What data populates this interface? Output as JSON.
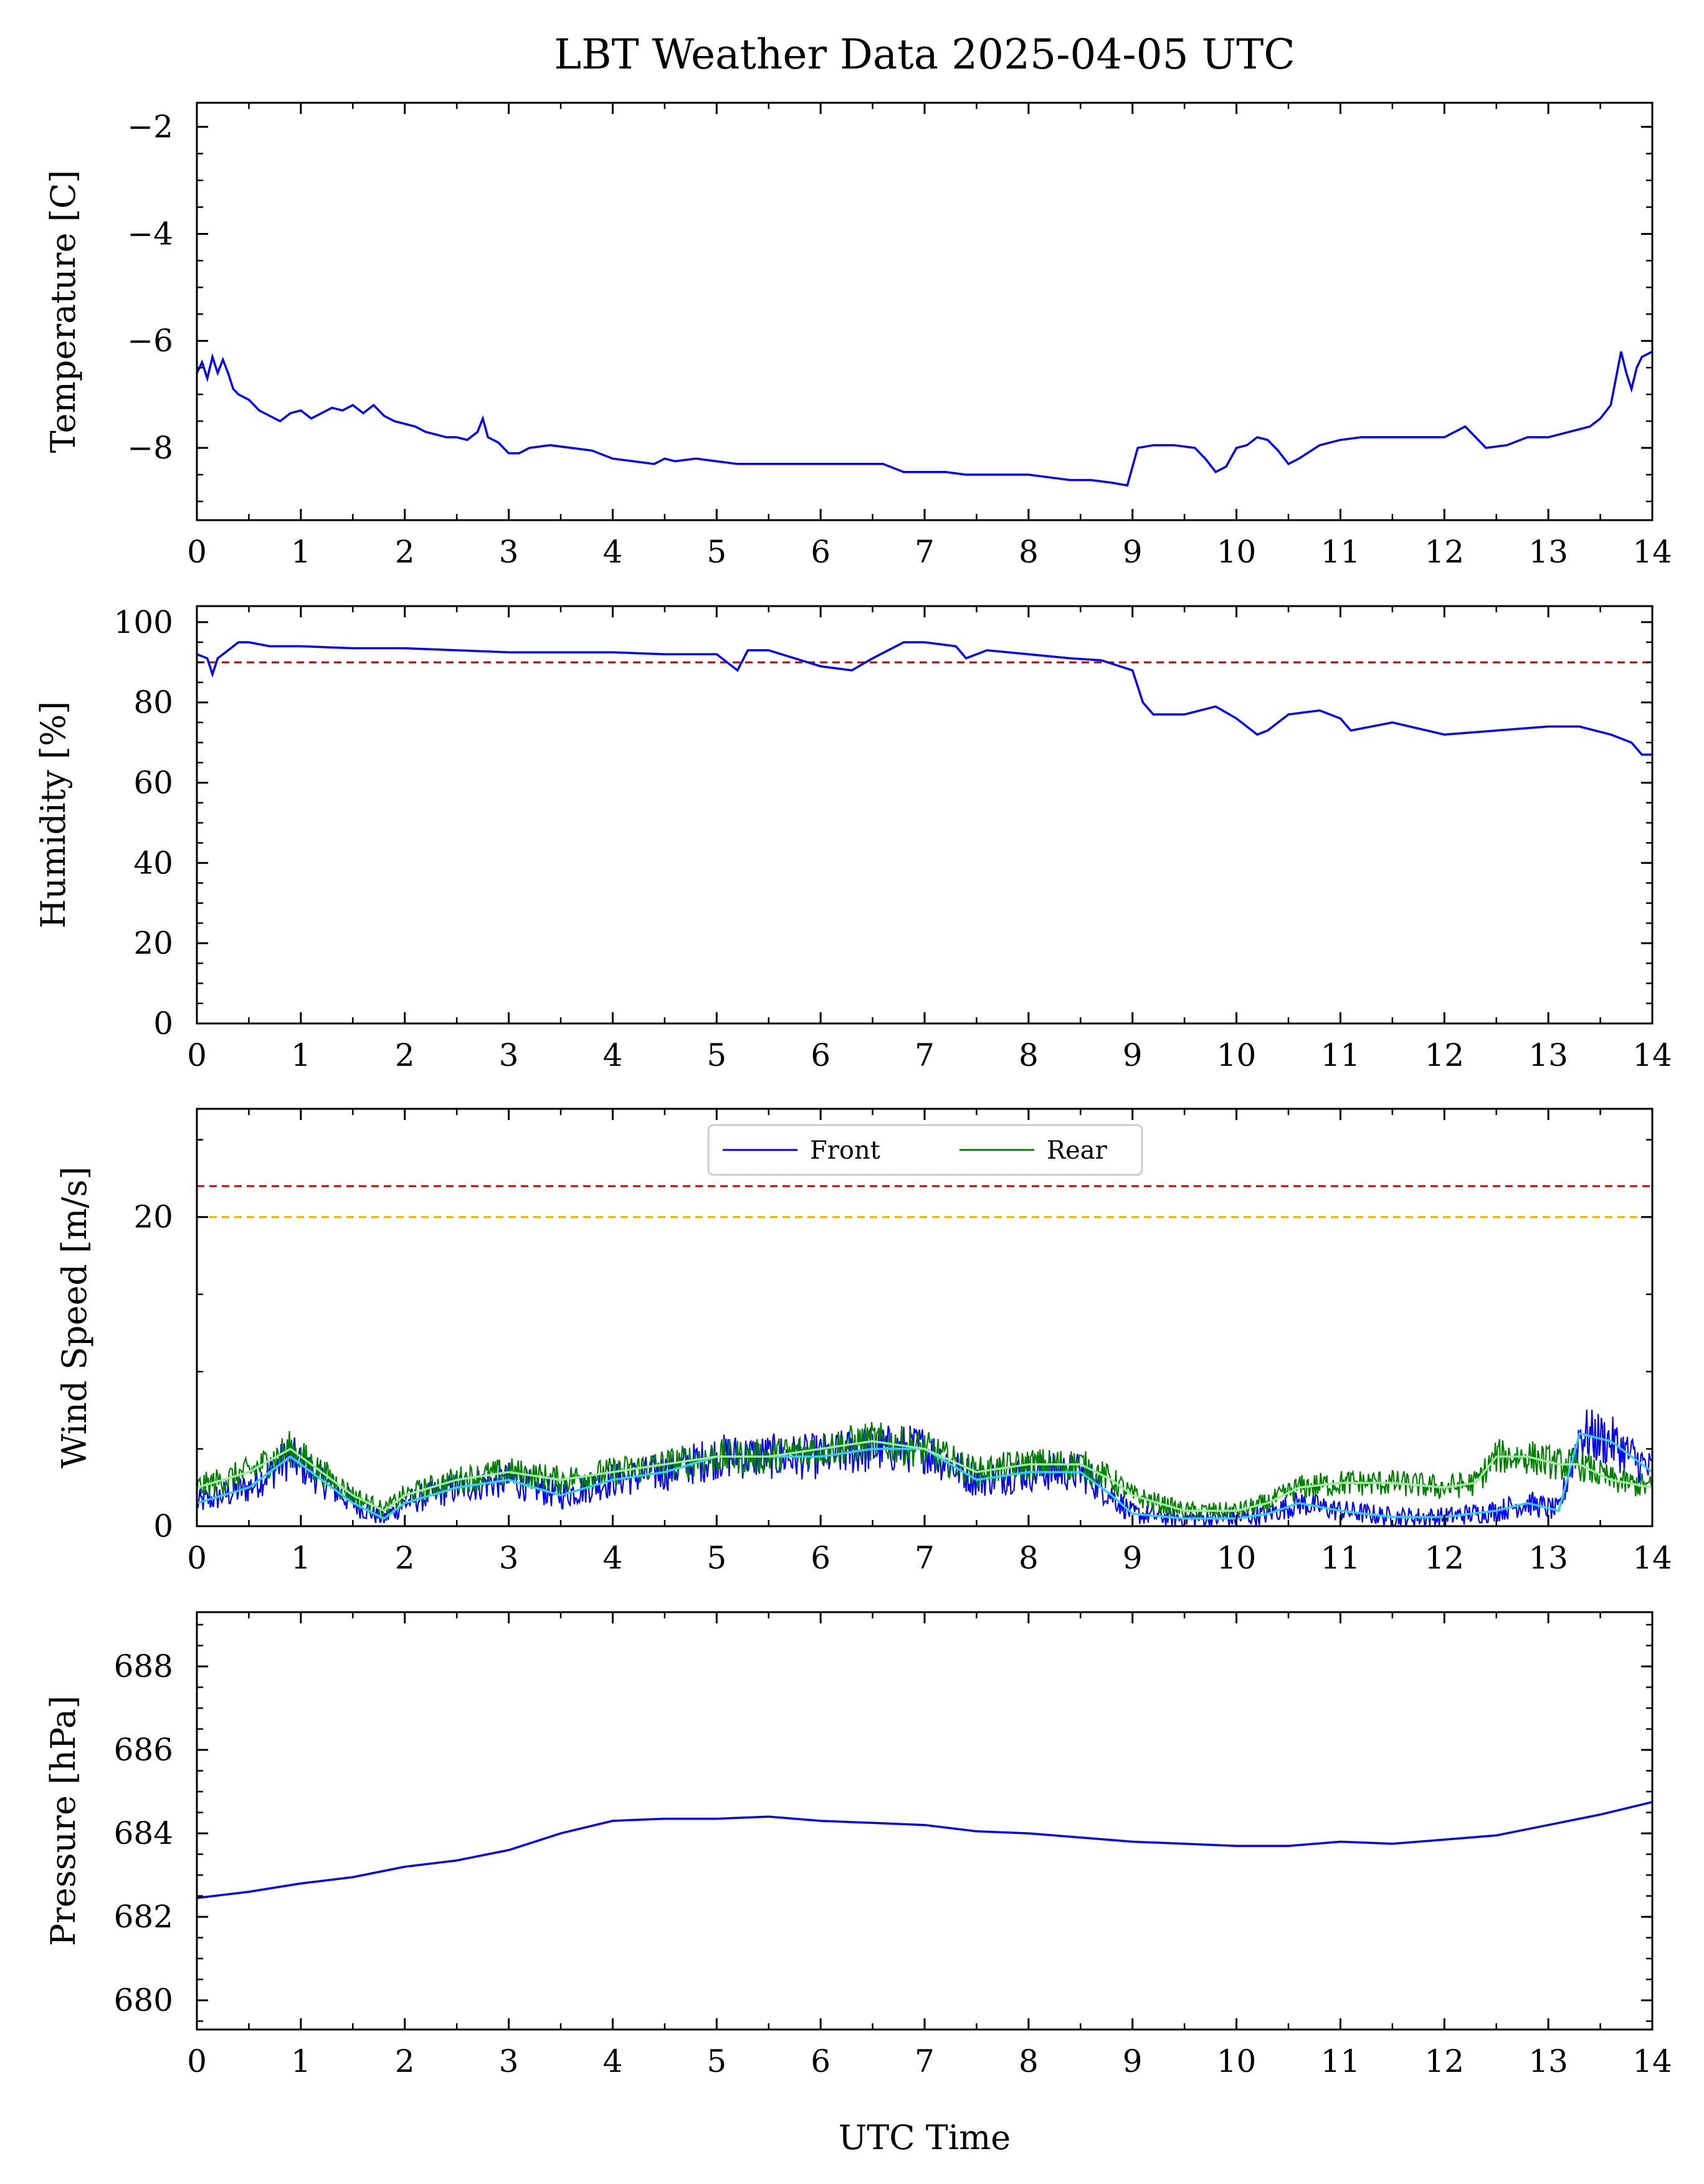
{
  "title": "LBT Weather Data 2025-04-05 UTC",
  "xlabel": "UTC Time",
  "colors": {
    "front": "#0000ff",
    "rear": "#008000",
    "front_smooth": "#33ccff",
    "rear_smooth": "#99ee99",
    "red_limit": "#cc0000",
    "yellow_limit": "#e8b000"
  },
  "chart_data": [
    {
      "type": "line",
      "ylabel": "Temperature [C]",
      "xlim": [
        0,
        14
      ],
      "ylim": [
        -9.35,
        -1.55
      ],
      "x_ticks": [
        0,
        1,
        2,
        3,
        4,
        5,
        6,
        7,
        8,
        9,
        10,
        11,
        12,
        13,
        14
      ],
      "y_ticks": [
        -2,
        -4,
        -6,
        -8
      ],
      "y_tick_labels": [
        "−2",
        "−4",
        "−6",
        "−8"
      ],
      "series": [
        {
          "color": "#0000ff",
          "x": [
            0,
            0.05,
            0.1,
            0.15,
            0.2,
            0.25,
            0.3,
            0.35,
            0.4,
            0.5,
            0.6,
            0.7,
            0.8,
            0.9,
            1.0,
            1.1,
            1.2,
            1.3,
            1.4,
            1.5,
            1.6,
            1.7,
            1.8,
            1.9,
            2.0,
            2.1,
            2.2,
            2.3,
            2.4,
            2.5,
            2.6,
            2.7,
            2.75,
            2.8,
            2.9,
            3.0,
            3.1,
            3.2,
            3.4,
            3.6,
            3.8,
            4.0,
            4.2,
            4.4,
            4.5,
            4.6,
            4.8,
            5.0,
            5.2,
            5.4,
            5.6,
            5.8,
            6.0,
            6.2,
            6.4,
            6.6,
            6.8,
            7.0,
            7.2,
            7.4,
            7.6,
            7.8,
            8.0,
            8.2,
            8.4,
            8.6,
            8.8,
            8.95,
            9.05,
            9.2,
            9.4,
            9.6,
            9.7,
            9.8,
            9.9,
            10.0,
            10.1,
            10.2,
            10.3,
            10.4,
            10.5,
            10.6,
            10.8,
            11.0,
            11.2,
            11.4,
            11.6,
            11.8,
            12.0,
            12.2,
            12.4,
            12.6,
            12.8,
            13.0,
            13.2,
            13.4,
            13.5,
            13.6,
            13.65,
            13.7,
            13.75,
            13.8,
            13.85,
            13.9,
            14.0
          ],
          "y": [
            -6.6,
            -6.4,
            -6.7,
            -6.3,
            -6.6,
            -6.35,
            -6.6,
            -6.9,
            -7.0,
            -7.1,
            -7.3,
            -7.4,
            -7.5,
            -7.35,
            -7.3,
            -7.45,
            -7.35,
            -7.25,
            -7.3,
            -7.2,
            -7.35,
            -7.2,
            -7.4,
            -7.5,
            -7.55,
            -7.6,
            -7.7,
            -7.75,
            -7.8,
            -7.8,
            -7.85,
            -7.7,
            -7.45,
            -7.8,
            -7.9,
            -8.1,
            -8.1,
            -8.0,
            -7.95,
            -8.0,
            -8.05,
            -8.2,
            -8.25,
            -8.3,
            -8.2,
            -8.25,
            -8.2,
            -8.25,
            -8.3,
            -8.3,
            -8.3,
            -8.3,
            -8.3,
            -8.3,
            -8.3,
            -8.3,
            -8.45,
            -8.45,
            -8.45,
            -8.5,
            -8.5,
            -8.5,
            -8.5,
            -8.55,
            -8.6,
            -8.6,
            -8.65,
            -8.7,
            -8.0,
            -7.95,
            -7.95,
            -8.0,
            -8.2,
            -8.45,
            -8.35,
            -8.0,
            -7.95,
            -7.8,
            -7.85,
            -8.05,
            -8.3,
            -8.2,
            -7.95,
            -7.85,
            -7.8,
            -7.8,
            -7.8,
            -7.8,
            -7.8,
            -7.6,
            -8.0,
            -7.95,
            -7.8,
            -7.8,
            -7.7,
            -7.6,
            -7.45,
            -7.2,
            -6.7,
            -6.2,
            -6.6,
            -6.9,
            -6.5,
            -6.3,
            -6.2
          ]
        }
      ]
    },
    {
      "type": "line",
      "ylabel": "Humidity [%]",
      "xlim": [
        0,
        14
      ],
      "ylim": [
        0,
        104
      ],
      "x_ticks": [
        0,
        1,
        2,
        3,
        4,
        5,
        6,
        7,
        8,
        9,
        10,
        11,
        12,
        13,
        14
      ],
      "y_ticks": [
        0,
        20,
        40,
        60,
        80,
        100
      ],
      "y_tick_labels": [
        "0",
        "20",
        "40",
        "60",
        "80",
        "100"
      ],
      "reference_lines": [
        {
          "y": 90,
          "color": "#cc0000",
          "style": "dashed"
        }
      ],
      "series": [
        {
          "color": "#0000ff",
          "x": [
            0,
            0.1,
            0.15,
            0.2,
            0.3,
            0.4,
            0.5,
            0.7,
            1.0,
            1.5,
            2.0,
            2.5,
            3.0,
            3.5,
            4.0,
            4.5,
            5.0,
            5.2,
            5.3,
            5.5,
            6.0,
            6.3,
            6.5,
            6.8,
            7.0,
            7.3,
            7.4,
            7.6,
            8.0,
            8.4,
            8.7,
            9.0,
            9.1,
            9.2,
            9.5,
            9.8,
            10.0,
            10.2,
            10.3,
            10.5,
            10.8,
            11.0,
            11.1,
            11.5,
            12.0,
            12.5,
            13.0,
            13.3,
            13.6,
            13.8,
            13.9,
            14.0
          ],
          "y": [
            92,
            91,
            87,
            91,
            93,
            95,
            95,
            94,
            94,
            93.5,
            93.5,
            93,
            92.5,
            92.5,
            92.5,
            92,
            92,
            88,
            93,
            93,
            89,
            88,
            91,
            95,
            95,
            94,
            91,
            93,
            92,
            91,
            90.5,
            88,
            80,
            77,
            77,
            79,
            76,
            72,
            73,
            77,
            78,
            76,
            73,
            75,
            72,
            73,
            74,
            74,
            72,
            70,
            67,
            67
          ]
        }
      ]
    },
    {
      "type": "line",
      "ylabel": "Wind Speed [m/s]",
      "xlim": [
        0,
        14
      ],
      "ylim": [
        0,
        27
      ],
      "x_ticks": [
        0,
        1,
        2,
        3,
        4,
        5,
        6,
        7,
        8,
        9,
        10,
        11,
        12,
        13,
        14
      ],
      "y_ticks": [
        0,
        20
      ],
      "y_tick_labels": [
        "0",
        "20"
      ],
      "y_minor_ticks": [
        5,
        10,
        15,
        25
      ],
      "legend": {
        "position": "top-center",
        "entries": [
          "Front",
          "Rear"
        ]
      },
      "reference_lines": [
        {
          "y": 22,
          "color": "#cc0000",
          "style": "dashed"
        },
        {
          "y": 20,
          "color": "#e8b000",
          "style": "dashed"
        }
      ],
      "series": [
        {
          "name": "Front",
          "color": "#0000ff",
          "x": [
            0,
            0.5,
            0.9,
            1.2,
            1.5,
            1.8,
            2.0,
            2.5,
            3.0,
            3.5,
            4.0,
            4.5,
            5.0,
            5.5,
            6.0,
            6.5,
            7.0,
            7.5,
            8.0,
            8.5,
            8.8,
            9.0,
            9.5,
            10.0,
            10.3,
            10.6,
            11.0,
            11.5,
            12.0,
            12.5,
            12.8,
            13.1,
            13.3,
            13.6,
            14.0
          ],
          "y": [
            1.5,
            2.5,
            4.5,
            3.0,
            1.5,
            0.5,
            1.5,
            2.5,
            3.0,
            2.0,
            3.0,
            3.5,
            4.5,
            4.5,
            4.5,
            5.0,
            5.0,
            3.0,
            3.5,
            3.5,
            2.0,
            0.8,
            0.5,
            0.5,
            0.8,
            1.5,
            1.0,
            0.6,
            0.6,
            1.0,
            1.5,
            1.0,
            6.0,
            5.5,
            3.5
          ],
          "noise": 1.3
        },
        {
          "name": "Rear",
          "color": "#008000",
          "x": [
            0,
            0.5,
            0.9,
            1.2,
            1.5,
            1.8,
            2.0,
            2.5,
            3.0,
            3.5,
            4.0,
            4.5,
            5.0,
            5.5,
            6.0,
            6.5,
            7.0,
            7.5,
            8.0,
            8.5,
            8.8,
            9.0,
            9.5,
            10.0,
            10.3,
            10.6,
            11.0,
            11.5,
            12.0,
            12.3,
            12.5,
            12.8,
            13.1,
            13.3,
            13.6,
            14.0
          ],
          "y": [
            2.5,
            3.5,
            5.0,
            3.5,
            2.0,
            1.0,
            2.0,
            3.0,
            3.5,
            3.0,
            3.5,
            4.0,
            4.5,
            4.5,
            5.0,
            5.5,
            5.0,
            3.5,
            4.0,
            4.0,
            3.0,
            2.0,
            1.0,
            1.0,
            1.5,
            2.5,
            2.8,
            2.8,
            2.5,
            2.8,
            4.5,
            4.5,
            4.0,
            4.0,
            3.0,
            2.5
          ],
          "noise": 1.0
        }
      ]
    },
    {
      "type": "line",
      "ylabel": "Pressure [hPa]",
      "xlim": [
        0,
        14
      ],
      "ylim": [
        679.3,
        689.3
      ],
      "x_ticks": [
        0,
        1,
        2,
        3,
        4,
        5,
        6,
        7,
        8,
        9,
        10,
        11,
        12,
        13,
        14
      ],
      "y_ticks": [
        680,
        682,
        684,
        686,
        688
      ],
      "y_tick_labels": [
        "680",
        "682",
        "684",
        "686",
        "688"
      ],
      "series": [
        {
          "color": "#0000ff",
          "x": [
            0,
            0.5,
            1.0,
            1.5,
            2.0,
            2.5,
            3.0,
            3.5,
            4.0,
            4.5,
            5.0,
            5.5,
            6.0,
            6.5,
            7.0,
            7.5,
            8.0,
            8.5,
            9.0,
            9.5,
            10.0,
            10.5,
            11.0,
            11.5,
            12.0,
            12.5,
            13.0,
            13.5,
            14.0
          ],
          "y": [
            682.45,
            682.6,
            682.8,
            682.95,
            683.2,
            683.35,
            683.6,
            684.0,
            684.3,
            684.35,
            684.35,
            684.4,
            684.3,
            684.25,
            684.2,
            684.05,
            684.0,
            683.9,
            683.8,
            683.75,
            683.7,
            683.7,
            683.8,
            683.75,
            683.85,
            683.95,
            684.2,
            684.45,
            684.75
          ]
        }
      ]
    }
  ]
}
